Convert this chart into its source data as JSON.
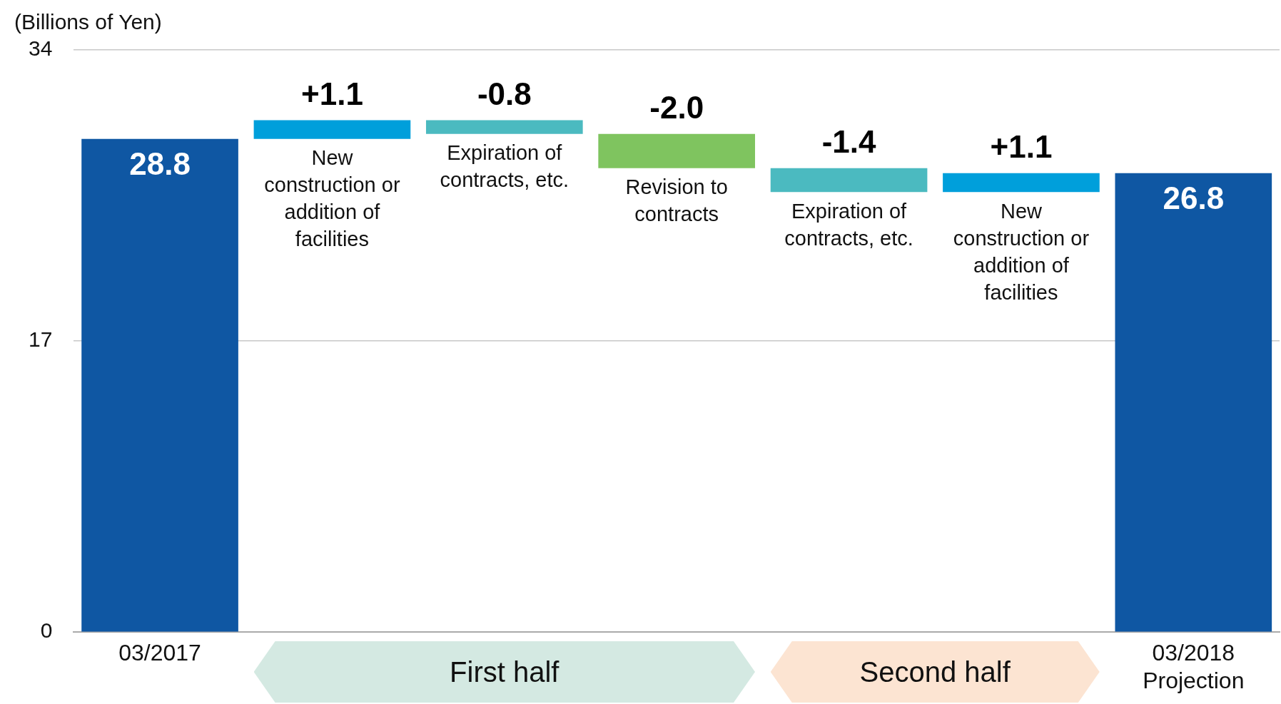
{
  "chart_data": {
    "type": "bar",
    "ylabel": "(Billions of Yen)",
    "categories": [
      "03/2017",
      "New construction or addition of facilities",
      "Expiration of contracts, etc.",
      "Revision to contracts",
      "Expiration of contracts, etc.",
      "New construction or addition of facilities",
      "03/2018 Projection"
    ],
    "values": [
      28.8,
      1.1,
      -0.8,
      -2.0,
      -1.4,
      1.1,
      26.8
    ],
    "base": [
      0,
      28.8,
      29.9,
      29.1,
      27.1,
      25.7,
      0
    ],
    "colors": [
      "#0f57a3",
      "#009fdb",
      "#4bbac0",
      "#7fc45f",
      "#4bbac0",
      "#009fdb",
      "#0f57a3"
    ],
    "value_labels": [
      "28.8",
      "+1.1",
      "-0.8",
      "-2.0",
      "-1.4",
      "+1.1",
      "26.8"
    ],
    "ylim": [
      0,
      34
    ],
    "yticks": [
      0,
      17,
      34
    ],
    "grid": "y",
    "legend": false,
    "annotations": [
      "First half",
      "Second half"
    ]
  }
}
